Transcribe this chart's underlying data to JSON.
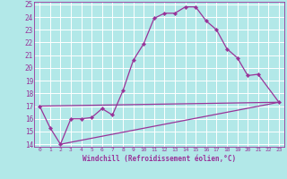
{
  "background_color": "#b2e8e8",
  "grid_color": "#ffffff",
  "line_color": "#993399",
  "x_label": "Windchill (Refroidissement éolien,°C)",
  "xlim": [
    -0.5,
    23.5
  ],
  "ylim": [
    13.8,
    25.2
  ],
  "yticks": [
    14,
    15,
    16,
    17,
    18,
    19,
    20,
    21,
    22,
    23,
    24,
    25
  ],
  "xticks": [
    0,
    1,
    2,
    3,
    4,
    5,
    6,
    7,
    8,
    9,
    10,
    11,
    12,
    13,
    14,
    15,
    16,
    17,
    18,
    19,
    20,
    21,
    22,
    23
  ],
  "curve": {
    "x": [
      0,
      1,
      2,
      3,
      4,
      5,
      6,
      7,
      8,
      9,
      10,
      11,
      12,
      13,
      14,
      15,
      16,
      17,
      18,
      19,
      20,
      21,
      23
    ],
    "y": [
      17.0,
      15.3,
      14.0,
      16.0,
      16.0,
      16.1,
      16.8,
      16.3,
      18.2,
      20.6,
      21.9,
      23.9,
      24.3,
      24.3,
      24.8,
      24.8,
      23.7,
      23.0,
      21.5,
      20.8,
      19.4,
      19.5,
      17.3
    ]
  },
  "line_flat": {
    "x": [
      0,
      23
    ],
    "y": [
      17.0,
      17.3
    ]
  },
  "line_rise": {
    "x": [
      2,
      23
    ],
    "y": [
      14.0,
      17.3
    ]
  }
}
